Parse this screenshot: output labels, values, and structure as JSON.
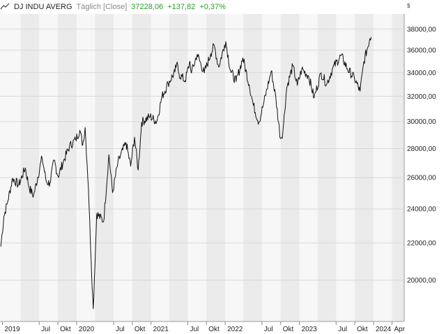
{
  "header": {
    "symbol": "DJ INDU AVERG",
    "period": "Täglich [Close]",
    "last_value": "37228,06",
    "change_abs": "+137,82",
    "change_pct": "+0,37%",
    "currency": "$",
    "positive_color": "#2a9d2a"
  },
  "chart_data": {
    "type": "line",
    "title": "",
    "xlabel": "",
    "ylabel": "",
    "y_scale": "log",
    "ylim": [
      18000,
      39500
    ],
    "xlim": [
      "2018-12-20",
      "2024-05-31"
    ],
    "grid": true,
    "y_ticks": [
      "20000,00",
      "22000,00",
      "24000,00",
      "26000,00",
      "28000,00",
      "30000,00",
      "32000,00",
      "34000,00",
      "36000,00",
      "38000,00"
    ],
    "x_ticks": [
      {
        "label": "2019",
        "date": "2019-01-01"
      },
      {
        "label": "Jul",
        "date": "2019-07-01"
      },
      {
        "label": "Okt",
        "date": "2019-10-01"
      },
      {
        "label": "2020",
        "date": "2020-01-01"
      },
      {
        "label": "Jul",
        "date": "2020-07-01"
      },
      {
        "label": "Okt",
        "date": "2020-10-01"
      },
      {
        "label": "2021",
        "date": "2021-01-01"
      },
      {
        "label": "Jul",
        "date": "2021-07-01"
      },
      {
        "label": "Okt",
        "date": "2021-10-01"
      },
      {
        "label": "2022",
        "date": "2022-01-01"
      },
      {
        "label": "Jul",
        "date": "2022-07-01"
      },
      {
        "label": "Okt",
        "date": "2022-10-01"
      },
      {
        "label": "2023",
        "date": "2023-01-01"
      },
      {
        "label": "Jul",
        "date": "2023-07-01"
      },
      {
        "label": "Okt",
        "date": "2023-10-01"
      },
      {
        "label": "2024",
        "date": "2024-01-01"
      },
      {
        "label": "Apr",
        "date": "2024-04-01"
      }
    ],
    "series": [
      {
        "line_color": "#111111",
        "points": [
          [
            "2018-12-24",
            21792
          ],
          [
            "2019-01-08",
            23530
          ],
          [
            "2019-01-28",
            24528
          ],
          [
            "2019-02-20",
            25954
          ],
          [
            "2019-03-22",
            25502
          ],
          [
            "2019-04-23",
            26656
          ],
          [
            "2019-05-13",
            25324
          ],
          [
            "2019-06-03",
            24815
          ],
          [
            "2019-07-15",
            27360
          ],
          [
            "2019-08-05",
            25718
          ],
          [
            "2019-08-23",
            25629
          ],
          [
            "2019-09-12",
            27182
          ],
          [
            "2019-10-02",
            26078
          ],
          [
            "2019-10-28",
            27090
          ],
          [
            "2019-11-27",
            28164
          ],
          [
            "2019-12-27",
            28645
          ],
          [
            "2020-01-17",
            29348
          ],
          [
            "2020-01-31",
            28256
          ],
          [
            "2020-02-12",
            29551
          ],
          [
            "2020-02-28",
            25409
          ],
          [
            "2020-03-12",
            21200
          ],
          [
            "2020-03-23",
            18591
          ],
          [
            "2020-04-09",
            23719
          ],
          [
            "2020-05-13",
            23247
          ],
          [
            "2020-06-08",
            27572
          ],
          [
            "2020-06-26",
            25016
          ],
          [
            "2020-07-22",
            27005
          ],
          [
            "2020-08-31",
            28430
          ],
          [
            "2020-09-23",
            26763
          ],
          [
            "2020-10-12",
            28837
          ],
          [
            "2020-10-30",
            26502
          ],
          [
            "2020-11-16",
            29950
          ],
          [
            "2020-12-28",
            30404
          ],
          [
            "2021-01-29",
            29983
          ],
          [
            "2021-02-24",
            31961
          ],
          [
            "2021-03-26",
            33072
          ],
          [
            "2021-04-29",
            34060
          ],
          [
            "2021-05-07",
            34778
          ],
          [
            "2021-05-19",
            33896
          ],
          [
            "2021-06-18",
            33290
          ],
          [
            "2021-07-12",
            34996
          ],
          [
            "2021-07-19",
            33962
          ],
          [
            "2021-08-16",
            35625
          ],
          [
            "2021-09-20",
            33970
          ],
          [
            "2021-10-22",
            35677
          ],
          [
            "2021-11-08",
            36432
          ],
          [
            "2021-11-30",
            34484
          ],
          [
            "2021-12-29",
            36488
          ],
          [
            "2022-01-04",
            36799
          ],
          [
            "2022-01-27",
            34160
          ],
          [
            "2022-02-24",
            33223
          ],
          [
            "2022-03-29",
            35294
          ],
          [
            "2022-04-29",
            32977
          ],
          [
            "2022-05-20",
            31262
          ],
          [
            "2022-06-16",
            29927
          ],
          [
            "2022-07-08",
            31338
          ],
          [
            "2022-08-16",
            34152
          ],
          [
            "2022-09-08",
            31774
          ],
          [
            "2022-09-30",
            28725
          ],
          [
            "2022-10-12",
            29210
          ],
          [
            "2022-10-31",
            32732
          ],
          [
            "2022-11-30",
            34589
          ],
          [
            "2022-12-22",
            32900
          ],
          [
            "2023-01-13",
            34302
          ],
          [
            "2023-02-16",
            33696
          ],
          [
            "2023-03-15",
            31875
          ],
          [
            "2023-04-18",
            33976
          ],
          [
            "2023-05-16",
            33012
          ],
          [
            "2023-06-15",
            34408
          ],
          [
            "2023-07-26",
            35520
          ],
          [
            "2023-08-25",
            34346
          ],
          [
            "2023-09-29",
            33507
          ],
          [
            "2023-10-27",
            32418
          ],
          [
            "2023-11-15",
            34991
          ],
          [
            "2023-12-14",
            37090
          ],
          [
            "2023-12-21",
            37228
          ]
        ]
      }
    ]
  }
}
